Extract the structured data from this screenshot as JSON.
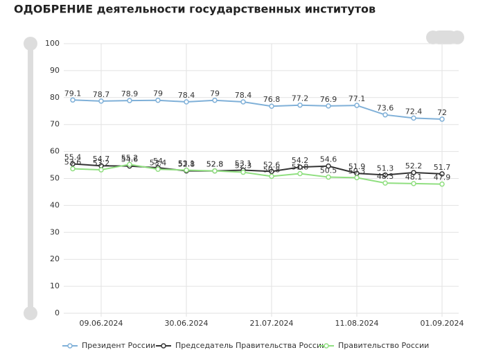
{
  "chart_data": {
    "type": "line",
    "title": "ОДОБРЕНИЕ деятельности государственных институтов",
    "categories": [
      null,
      "09.06.2024",
      null,
      null,
      "30.06.2024",
      null,
      null,
      "21.07.2024",
      null,
      null,
      "11.08.2024",
      null,
      null,
      "01.09.2024"
    ],
    "series": [
      {
        "name": "Президент России",
        "color": "#7fb0d8",
        "values": [
          79.1,
          78.7,
          78.9,
          79,
          78.4,
          79,
          78.4,
          76.8,
          77.2,
          76.9,
          77.1,
          73.6,
          72.4,
          72
        ]
      },
      {
        "name": "Председатель Правительства России",
        "color": "#333333",
        "values": [
          55.4,
          54.7,
          54.6,
          54,
          52.8,
          52.8,
          53.1,
          52.6,
          54.2,
          54.6,
          51.9,
          51.3,
          52.2,
          51.7
        ]
      },
      {
        "name": "Правительство России",
        "color": "#90df80",
        "values": [
          53.6,
          53.2,
          55.2,
          53.4,
          53.1,
          52.8,
          52.3,
          50.8,
          51.8,
          50.5,
          50.3,
          48.3,
          48.1,
          47.9
        ]
      }
    ],
    "ylim": [
      0,
      100
    ],
    "yticks": [
      0,
      10,
      20,
      30,
      40,
      50,
      60,
      70,
      80,
      90,
      100
    ],
    "grid": true
  }
}
